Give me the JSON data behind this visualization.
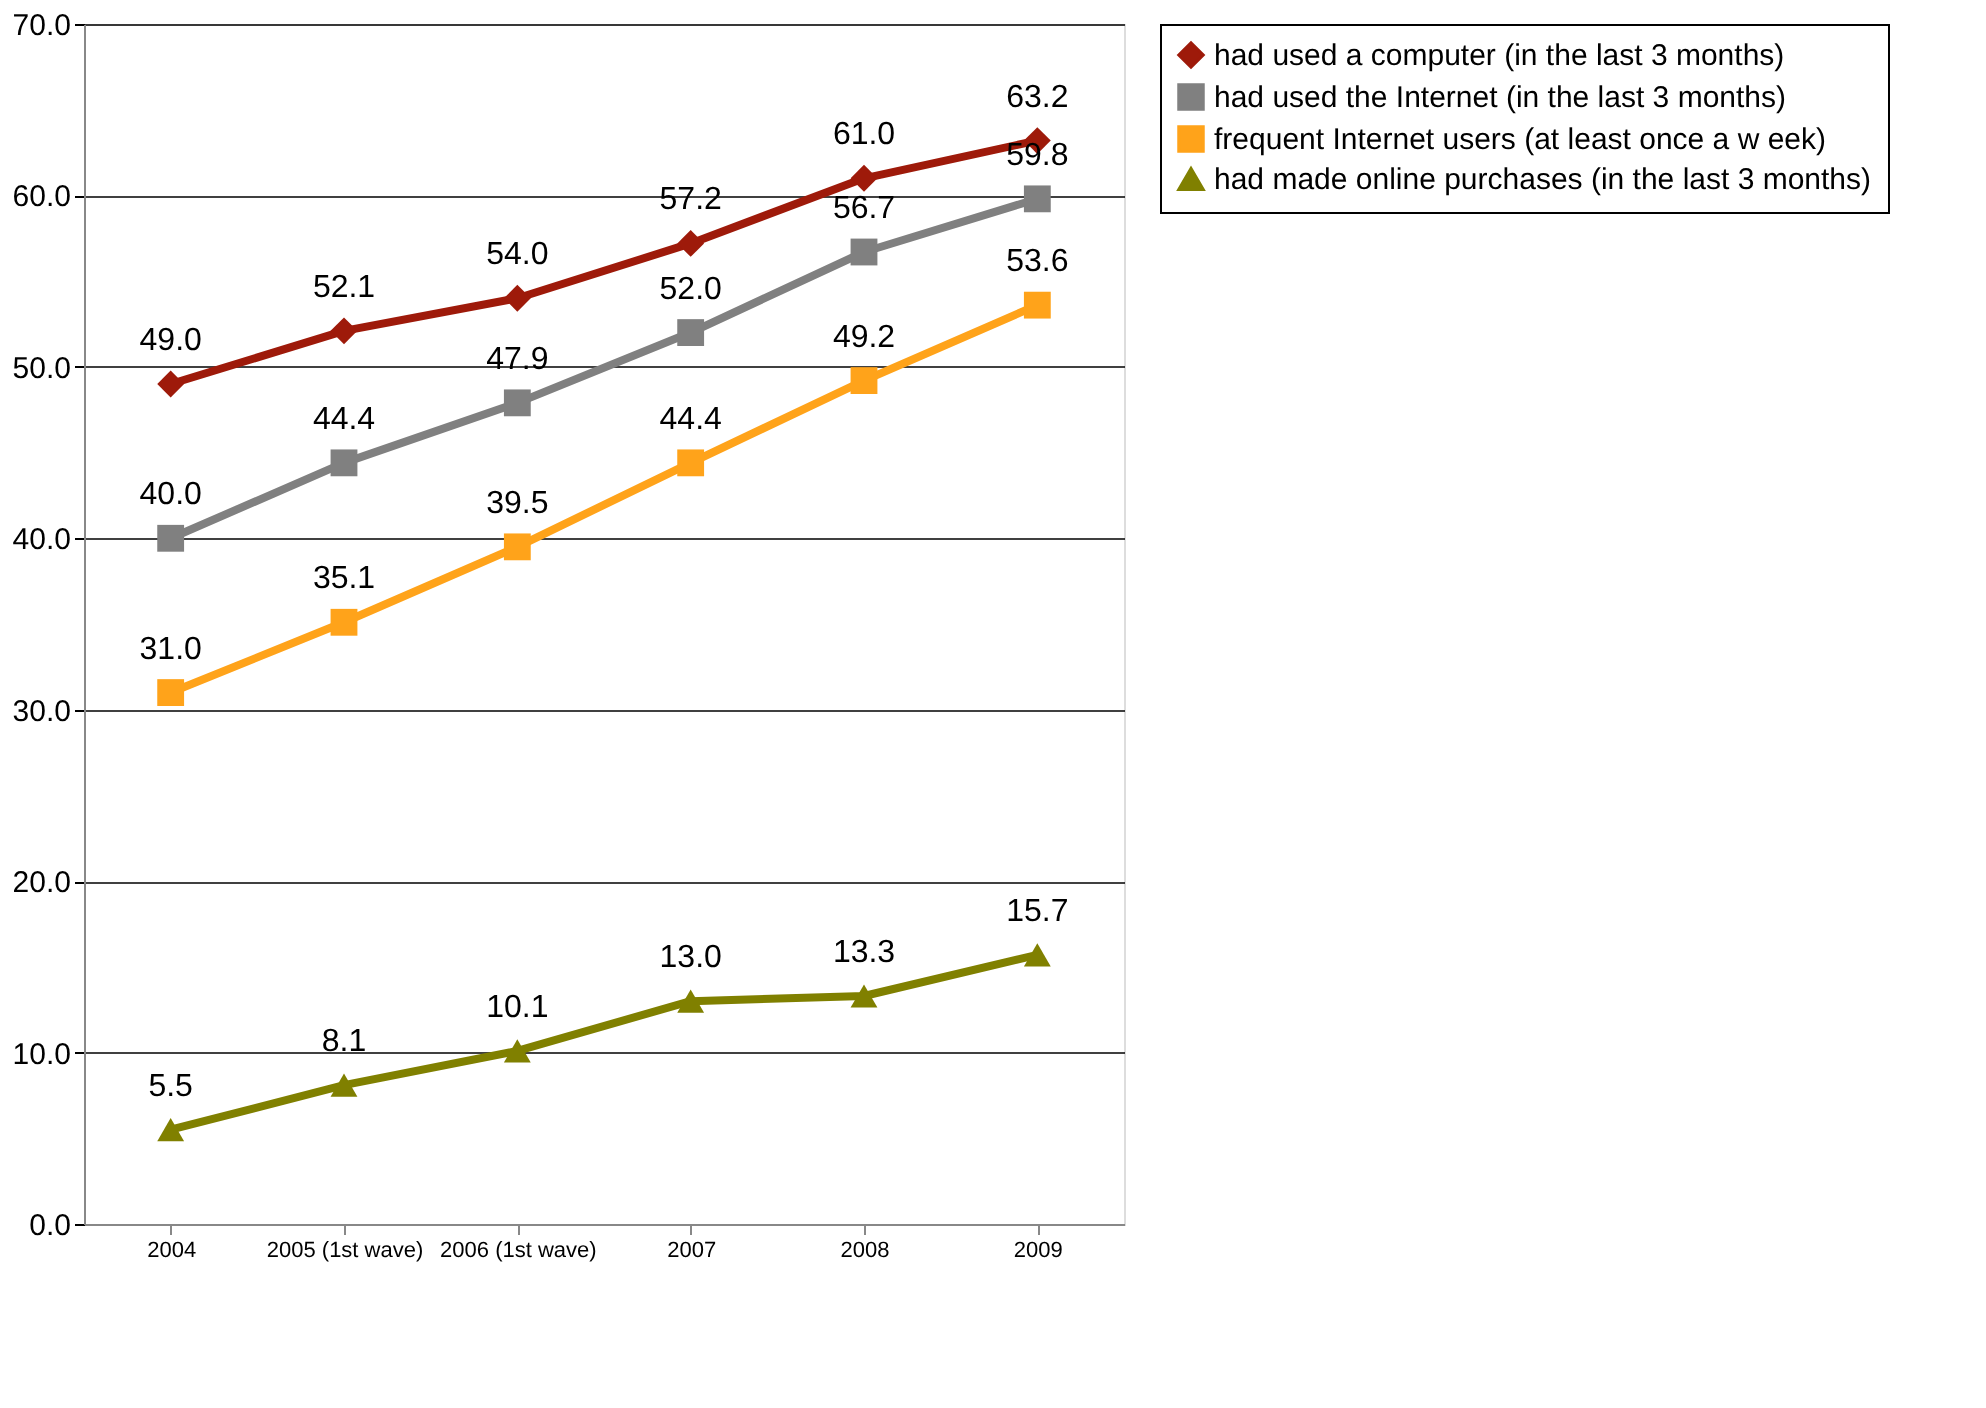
{
  "chart_data": {
    "type": "line",
    "categories": [
      "2004",
      "2005 (1st wave)",
      "2006 (1st wave)",
      "2007",
      "2008",
      "2009"
    ],
    "series": [
      {
        "name": "had used a computer (in the last 3 months)",
        "color": "#9e1a0a",
        "marker": "diamond",
        "values": [
          49.0,
          52.1,
          54.0,
          57.2,
          61.0,
          63.2
        ],
        "value_labels": [
          "49.0",
          "52.1",
          "54.0",
          "57.2",
          "61.0",
          "63.2"
        ]
      },
      {
        "name": "had used the Internet (in the last 3 months)",
        "color": "#808080",
        "marker": "square",
        "values": [
          40.0,
          44.4,
          47.9,
          52.0,
          56.7,
          59.8
        ],
        "value_labels": [
          "40.0",
          "44.4",
          "47.9",
          "52.0",
          "56.7",
          "59.8"
        ]
      },
      {
        "name": "frequent Internet users (at least once a w eek)",
        "color": "#ffa31a",
        "marker": "square",
        "values": [
          31.0,
          35.1,
          39.5,
          44.4,
          49.2,
          53.6
        ],
        "value_labels": [
          "31.0",
          "35.1",
          "39.5",
          "44.4",
          "49.2",
          "53.6"
        ]
      },
      {
        "name": "had made online purchases (in the last 3 months)",
        "color": "#808000",
        "marker": "triangle",
        "values": [
          5.5,
          8.1,
          10.1,
          13.0,
          13.3,
          15.7
        ],
        "value_labels": [
          "5.5",
          "8.1",
          "10.1",
          "13.0",
          "13.3",
          "15.7"
        ]
      }
    ],
    "ylim": [
      0,
      70
    ],
    "yticks": [
      {
        "value": 0,
        "label": "0.0"
      },
      {
        "value": 10,
        "label": "10.0"
      },
      {
        "value": 20,
        "label": "20.0"
      },
      {
        "value": 30,
        "label": "30.0"
      },
      {
        "value": 40,
        "label": "40.0"
      },
      {
        "value": 50,
        "label": "50.0"
      },
      {
        "value": 60,
        "label": "60.0"
      },
      {
        "value": 70,
        "label": "70.0"
      }
    ],
    "grid": "y",
    "legend": "right",
    "line_style": "solid"
  }
}
